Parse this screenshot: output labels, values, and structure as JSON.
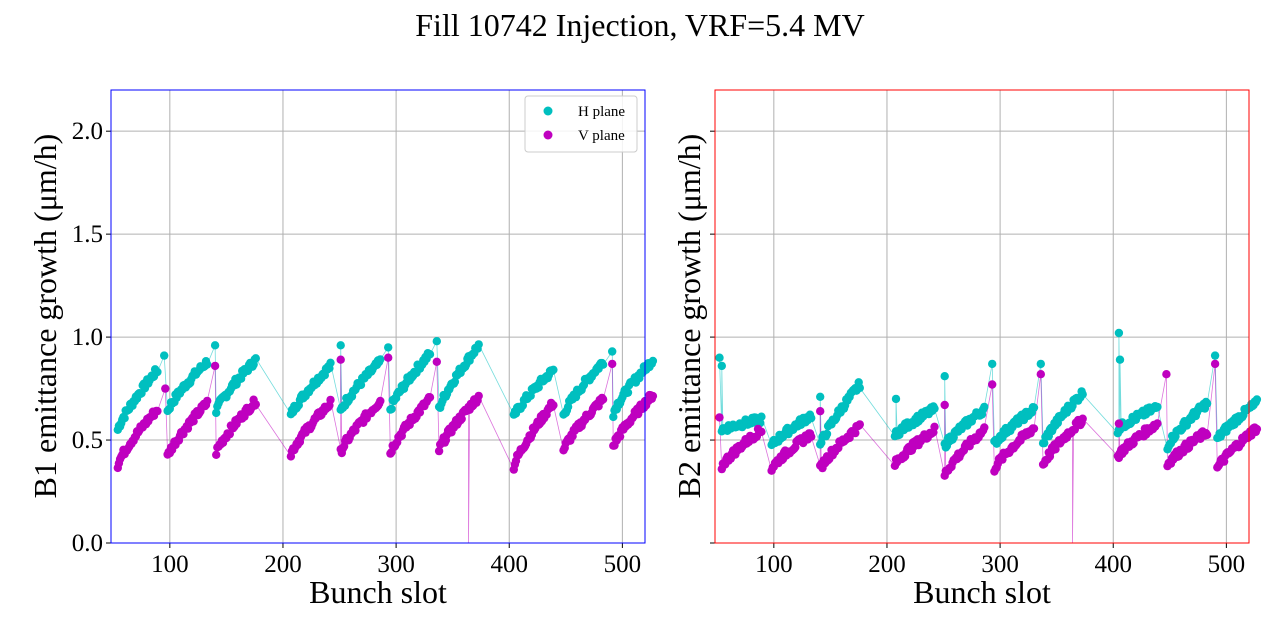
{
  "title": "Fill 10742 Injection, VRF=5.4 MV",
  "colors": {
    "h_plane": "#00BFBF",
    "v_plane": "#BF00BF",
    "b1_frame": "#0000FF",
    "b2_frame": "#FF0000",
    "grid": "#b0b0b0"
  },
  "chart_data": [
    {
      "type": "scatter",
      "xlabel": "Bunch slot",
      "ylabel": "B1 emittance growth (μm/h)",
      "xlim": [
        48,
        520
      ],
      "ylim": [
        0,
        2.2
      ],
      "xticks": [
        "100",
        "200",
        "300",
        "400",
        "500"
      ],
      "yticks": [
        "0.0",
        "0.5",
        "1.0",
        "1.5",
        "2.0"
      ],
      "grid": true,
      "legend_position": "top-right",
      "series": [
        {
          "name": "H plane",
          "color": "#00BFBF",
          "segments": [
            [
              54,
              0.55,
              0.84
            ],
            [
              98,
              0.64,
              0.88
            ],
            [
              141,
              0.64,
              0.89
            ],
            [
              207,
              0.62,
              0.86
            ],
            [
              251,
              0.64,
              0.88
            ],
            [
              295,
              0.65,
              0.92
            ],
            [
              338,
              0.65,
              0.96
            ],
            [
              404,
              0.61,
              0.84
            ],
            [
              448,
              0.62,
              0.88
            ],
            [
              492,
              0.63,
              0.89
            ]
          ],
          "spikes": [
            [
              95,
              0.91
            ],
            [
              140,
              0.96
            ],
            [
              251,
              0.96
            ],
            [
              293,
              0.95
            ],
            [
              336,
              0.98
            ],
            [
              491,
              0.93
            ]
          ]
        },
        {
          "name": "V plane",
          "color": "#BF00BF",
          "segments": [
            [
              54,
              0.38,
              0.65
            ],
            [
              98,
              0.42,
              0.68
            ],
            [
              141,
              0.44,
              0.69
            ],
            [
              207,
              0.43,
              0.68
            ],
            [
              251,
              0.44,
              0.69
            ],
            [
              295,
              0.44,
              0.7
            ],
            [
              338,
              0.45,
              0.71
            ],
            [
              404,
              0.37,
              0.68
            ],
            [
              448,
              0.45,
              0.7
            ],
            [
              492,
              0.47,
              0.72
            ]
          ],
          "spikes": [
            [
              96,
              0.75
            ],
            [
              140,
              0.86
            ],
            [
              251,
              0.89
            ],
            [
              293,
              0.9
            ],
            [
              336,
              0.88
            ],
            [
              491,
              0.87
            ]
          ],
          "dropouts": [
            [
              364,
              0.0
            ]
          ]
        }
      ]
    },
    {
      "type": "scatter",
      "xlabel": "Bunch slot",
      "ylabel": "B2 emittance growth (μm/h)",
      "xlim": [
        48,
        520
      ],
      "ylim": [
        0,
        2.2
      ],
      "xticks": [
        "100",
        "200",
        "300",
        "400",
        "500"
      ],
      "grid": true,
      "series": [
        {
          "name": "H plane",
          "color": "#00BFBF",
          "segments": [
            [
              54,
              0.55,
              0.6
            ],
            [
              98,
              0.47,
              0.62
            ],
            [
              141,
              0.47,
              0.77
            ],
            [
              207,
              0.52,
              0.65
            ],
            [
              251,
              0.47,
              0.65
            ],
            [
              295,
              0.48,
              0.65
            ],
            [
              338,
              0.48,
              0.73
            ],
            [
              404,
              0.55,
              0.66
            ],
            [
              448,
              0.47,
              0.68
            ],
            [
              492,
              0.5,
              0.68
            ]
          ],
          "spikes": [
            [
              52,
              0.9
            ],
            [
              54,
              0.86
            ],
            [
              141,
              0.71
            ],
            [
              208,
              0.7
            ],
            [
              251,
              0.81
            ],
            [
              293,
              0.87
            ],
            [
              336,
              0.87
            ],
            [
              405,
              1.02
            ],
            [
              406,
              0.89
            ],
            [
              490,
              0.91
            ]
          ]
        },
        {
          "name": "V plane",
          "color": "#BF00BF",
          "segments": [
            [
              54,
              0.37,
              0.55
            ],
            [
              98,
              0.36,
              0.53
            ],
            [
              141,
              0.36,
              0.57
            ],
            [
              207,
              0.38,
              0.55
            ],
            [
              251,
              0.33,
              0.55
            ],
            [
              295,
              0.36,
              0.56
            ],
            [
              338,
              0.38,
              0.6
            ],
            [
              404,
              0.42,
              0.58
            ],
            [
              448,
              0.38,
              0.54
            ],
            [
              492,
              0.36,
              0.56
            ]
          ],
          "spikes": [
            [
              52,
              0.61
            ],
            [
              141,
              0.64
            ],
            [
              251,
              0.67
            ],
            [
              293,
              0.77
            ],
            [
              336,
              0.82
            ],
            [
              405,
              0.58
            ],
            [
              447,
              0.82
            ],
            [
              490,
              0.87
            ]
          ],
          "dropouts": [
            [
              364,
              0.0
            ]
          ]
        }
      ]
    }
  ]
}
